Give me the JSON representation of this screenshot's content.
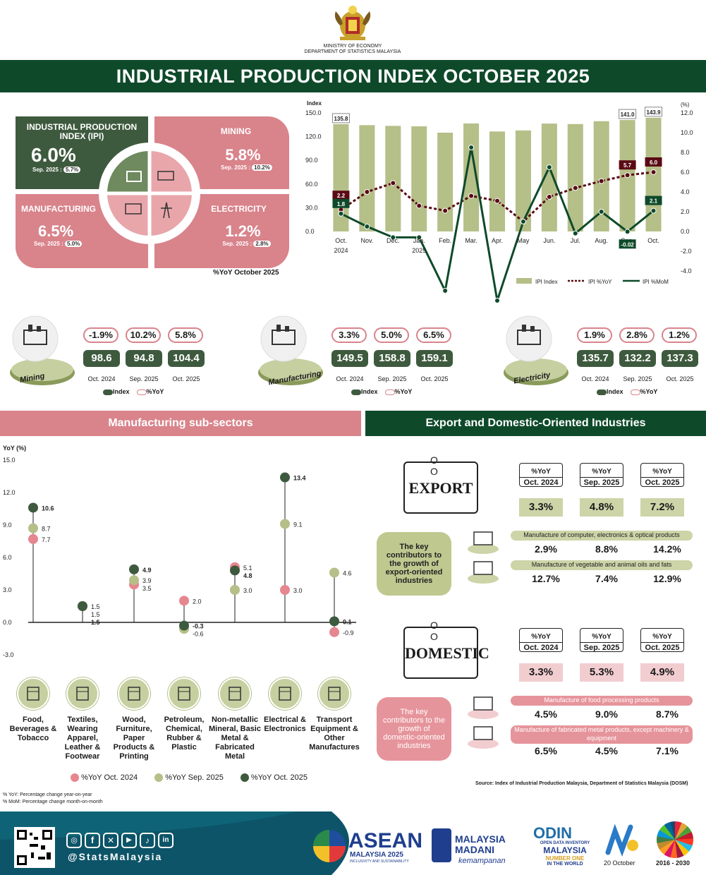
{
  "header": {
    "ministry": "MINISTRY OF ECONOMY",
    "department": "DEPARTMENT OF STATISTICS MALAYSIA",
    "title": "INDUSTRIAL PRODUCTION INDEX OCTOBER 2025"
  },
  "summary": {
    "ipi": {
      "title": "INDUSTRIAL PRODUCTION INDEX (IPI)",
      "value": "6.0%",
      "prev_label": "Sep. 2025 :",
      "prev": "5.7%"
    },
    "mining": {
      "title": "MINING",
      "value": "5.8%",
      "prev_label": "Sep. 2025 :",
      "prev": "10.2%"
    },
    "manufacturing": {
      "title": "MANUFACTURING",
      "value": "6.5%",
      "prev_label": "Sep. 2025 :",
      "prev": "5.0%"
    },
    "electricity": {
      "title": "ELECTRICITY",
      "value": "1.2%",
      "prev_label": "Sep. 2025 :",
      "prev": "2.8%"
    },
    "note": "%YoY October 2025"
  },
  "chart_data": [
    {
      "type": "bar",
      "title": "IPI Index",
      "ylabel_left": "Index",
      "ylabel_right": "(%)",
      "categories": [
        "Oct.",
        "Nov.",
        "Dec.",
        "Jan.",
        "Feb.",
        "Mar.",
        "Apr.",
        "May",
        "Jun.",
        "Jul.",
        "Aug.",
        "Sep.",
        "Oct."
      ],
      "year_labels": [
        "2024",
        "2025"
      ],
      "left_ticks": [
        "0.0",
        "30.0",
        "60.0",
        "90.0",
        "120.0",
        "150.0"
      ],
      "right_ticks": [
        "-4.0",
        "-2.0",
        "0.0",
        "2.0",
        "4.0",
        "6.0",
        "8.0",
        "10.0",
        "12.0"
      ],
      "ylim_left": [
        0,
        150
      ],
      "ylim_right": [
        -4,
        12
      ],
      "series": [
        {
          "name": "IPI Index",
          "values": [
            135.8,
            134.5,
            133.6,
            133.0,
            125.0,
            136.6,
            126.5,
            127.8,
            136.5,
            135.9,
            139.5,
            141.0,
            143.9
          ]
        },
        {
          "name": "IPI %YoY",
          "values": [
            2.2,
            4.0,
            4.9,
            2.6,
            2.1,
            3.6,
            3.1,
            1.0,
            3.5,
            4.4,
            5.1,
            5.7,
            6.0
          ]
        },
        {
          "name": "IPI %MoM",
          "values": [
            1.8,
            0.5,
            -0.6,
            -0.6,
            -6.0,
            8.5,
            -7.0,
            1.0,
            6.5,
            -0.2,
            2.0,
            -0.02,
            2.1
          ]
        }
      ],
      "labels": {
        "first_bar": "135.8",
        "sep_bar": "141.0",
        "oct_bar": "143.9",
        "yoy_first": "2.2",
        "mom_first": "1.8",
        "yoy_sep": "5.7",
        "mom_sep": "-0.02",
        "yoy_oct": "6.0",
        "mom_oct": "2.1"
      }
    },
    {
      "type": "scatter",
      "title": "Manufacturing sub-sectors",
      "ylabel": "YoY (%)",
      "y_ticks": [
        "15.0",
        "12.0",
        "9.0",
        "6.0",
        "3.0",
        "0.0",
        "-3.0"
      ],
      "ylim": [
        -3,
        15
      ],
      "categories": [
        "Food, Beverages & Tobacco",
        "Textiles, Wearing Apparel, Leather & Footwear",
        "Wood, Furniture, Paper Products & Printing",
        "Petroleum, Chemical, Rubber & Plastic",
        "Non-metallic Mineral, Basic Metal & Fabricated Metal",
        "Electrical & Electronics",
        "Transport Equipment & Other Manufactures"
      ],
      "series": [
        {
          "name": "%YoY Oct. 2024",
          "values": [
            7.7,
            1.5,
            3.5,
            2.0,
            5.1,
            3.0,
            -0.9
          ],
          "labels": [
            "7.7",
            "1.5",
            "3.5",
            "2.0",
            "5.1",
            "3.0",
            "-0.9"
          ]
        },
        {
          "name": "%YoY Sep. 2025",
          "values": [
            8.7,
            1.5,
            3.9,
            -0.6,
            3.0,
            9.1,
            4.6
          ],
          "labels": [
            "8.7",
            "1.5",
            "3.9",
            "-0.6",
            "3.0",
            "9.1",
            "4.6"
          ]
        },
        {
          "name": "%YoY Oct. 2025",
          "values": [
            10.6,
            1.5,
            4.9,
            -0.3,
            4.8,
            13.4,
            0.1
          ],
          "labels": [
            "10.6",
            "1.5",
            "4.9",
            "-0.3",
            "4.8",
            "13.4",
            "0.1"
          ]
        }
      ]
    }
  ],
  "chart_legend": {
    "index": "IPI Index",
    "yoy": "IPI %YoY",
    "mom": "IPI %MoM"
  },
  "sectors": [
    {
      "name": "Mining",
      "yoy": [
        "-1.9%",
        "10.2%",
        "5.8%"
      ],
      "index": [
        "98.6",
        "94.8",
        "104.4"
      ]
    },
    {
      "name": "Manufacturing",
      "yoy": [
        "3.3%",
        "5.0%",
        "6.5%"
      ],
      "index": [
        "149.5",
        "158.8",
        "159.1"
      ]
    },
    {
      "name": "Electricity",
      "yoy": [
        "1.9%",
        "2.8%",
        "1.2%"
      ],
      "index": [
        "135.7",
        "132.2",
        "137.3"
      ]
    }
  ],
  "period_labels": [
    "Oct. 2024",
    "Sep. 2025",
    "Oct. 2025"
  ],
  "sector_legend": {
    "index": "Index",
    "yoy": "%YoY"
  },
  "sections": {
    "manufacturing": "Manufacturing sub-sectors",
    "export_domestic": "Export and Domestic-Oriented Industries"
  },
  "export": {
    "label": "EXPORT",
    "yoy_head": "%YoY",
    "periods": [
      "Oct. 2024",
      "Sep. 2025",
      "Oct. 2025"
    ],
    "values": [
      "3.3%",
      "4.8%",
      "7.2%"
    ],
    "key": "The key contributors to the growth of export-oriented industries",
    "items": [
      {
        "name": "Manufacture of computer, electronics & optical products",
        "values": [
          "2.9%",
          "8.8%",
          "14.2%"
        ]
      },
      {
        "name": "Manufacture of vegetable and animal oils and fats",
        "values": [
          "12.7%",
          "7.4%",
          "12.9%"
        ]
      }
    ]
  },
  "domestic": {
    "label": "DOMESTIC",
    "yoy_head": "%YoY",
    "periods": [
      "Oct. 2024",
      "Sep. 2025",
      "Oct. 2025"
    ],
    "values": [
      "3.3%",
      "5.3%",
      "4.9%"
    ],
    "key": "The key contributors to the growth of domestic-oriented industries",
    "items": [
      {
        "name": "Manufacture of food processing products",
        "values": [
          "4.5%",
          "9.0%",
          "8.7%"
        ]
      },
      {
        "name": "Manufacture of fabricated metal products, except machinery & equipment",
        "values": [
          "6.5%",
          "4.5%",
          "7.1%"
        ]
      }
    ]
  },
  "notes": {
    "yoy": "% YoY: Percentage change year-on-year",
    "mom": "% MoM: Percentage change month-on-month",
    "source": "Source: Index of Industrial Production Malaysia, Department of Statistics Malaysia (DOSM)"
  },
  "footer": {
    "handle": "@StatsMalaysia",
    "asean": "ASEAN",
    "asean_sub": "MALAYSIA 2025",
    "asean_tag": "INCLUSIVITY AND SUSTAINABILITY",
    "madani": "MALAYSIA MADANI",
    "madani_tag": "kemampanan",
    "odin": "ODIN",
    "odin_sub": "OPEN DATA INVENTORY",
    "odin_sub2": "MALAYSIA",
    "odin_sub3": "NUMBER ONE",
    "odin_sub4": "IN THE WORLD",
    "date": "20 October",
    "sdg": "2016 - 2030"
  },
  "colors": {
    "green": "#0e4a2a",
    "pink": "#d9838b",
    "olive": "#b5bf88",
    "dark": "#3e5a3e"
  }
}
